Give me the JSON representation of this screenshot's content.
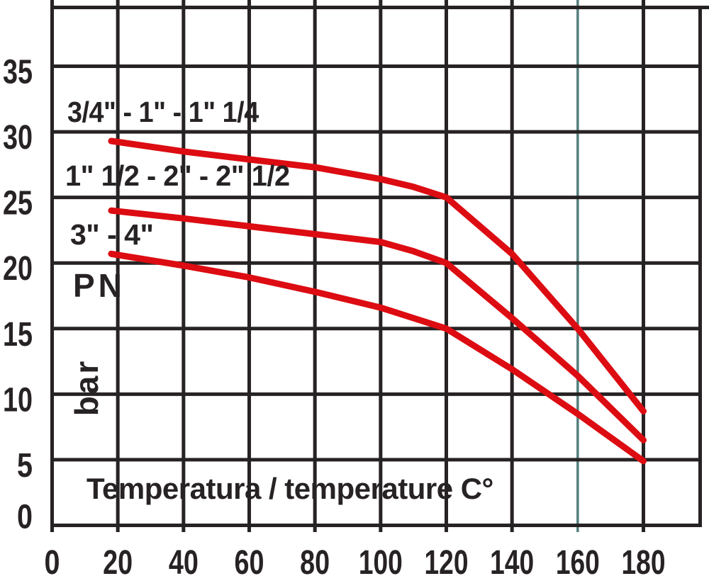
{
  "chart_data": {
    "type": "line",
    "title": "",
    "xlabel": "Temperatura / temperature C°",
    "ylabel": "PN",
    "ylabel_unit": "bar",
    "xlim": [
      0,
      197
    ],
    "ylim": [
      0,
      39.5
    ],
    "x_ticks": [
      0,
      20,
      40,
      60,
      80,
      100,
      120,
      140,
      160,
      180
    ],
    "y_ticks": [
      0,
      5,
      10,
      15,
      20,
      25,
      30,
      35
    ],
    "grid": true,
    "legend_position": "inline-left-above-each-curve",
    "series": [
      {
        "name": "3/4\" - 1\" - 1\" 1/4",
        "points": [
          [
            18,
            29.3
          ],
          [
            40,
            28.5
          ],
          [
            60,
            27.9
          ],
          [
            80,
            27.3
          ],
          [
            100,
            26.4
          ],
          [
            110,
            25.8
          ],
          [
            120,
            25
          ],
          [
            140,
            20.7
          ],
          [
            160,
            15
          ],
          [
            180,
            8.7
          ]
        ]
      },
      {
        "name": "1\" 1/2 - 2\" - 2\" 1/2",
        "points": [
          [
            18,
            24
          ],
          [
            40,
            23.4
          ],
          [
            60,
            22.8
          ],
          [
            80,
            22.2
          ],
          [
            100,
            21.6
          ],
          [
            110,
            20.9
          ],
          [
            120,
            20
          ],
          [
            140,
            15.8
          ],
          [
            160,
            11.4
          ],
          [
            180,
            6.5
          ]
        ]
      },
      {
        "name": "3\" - 4\"",
        "points": [
          [
            18,
            20.7
          ],
          [
            40,
            19.8
          ],
          [
            60,
            18.9
          ],
          [
            80,
            17.8
          ],
          [
            100,
            16.6
          ],
          [
            110,
            15.8
          ],
          [
            120,
            15
          ],
          [
            140,
            11.9
          ],
          [
            160,
            8.5
          ],
          [
            180,
            4.9
          ]
        ]
      }
    ],
    "colors": {
      "line": "#dc0c12",
      "grid": "#272223",
      "text": "#272223",
      "background": "#ffffff",
      "highlight_gridline": "#547e7d"
    },
    "highlight_x_gridline": 160
  },
  "labels": {
    "series_1": "3/4\" - 1\" - 1\" 1/4",
    "series_2": "1\" 1/2 - 2\" - 2\" 1/2",
    "series_3": "3\" - 4\"",
    "y_axis": "PN",
    "y_unit": "bar",
    "x_axis": "Temperatura / temperature C°"
  }
}
